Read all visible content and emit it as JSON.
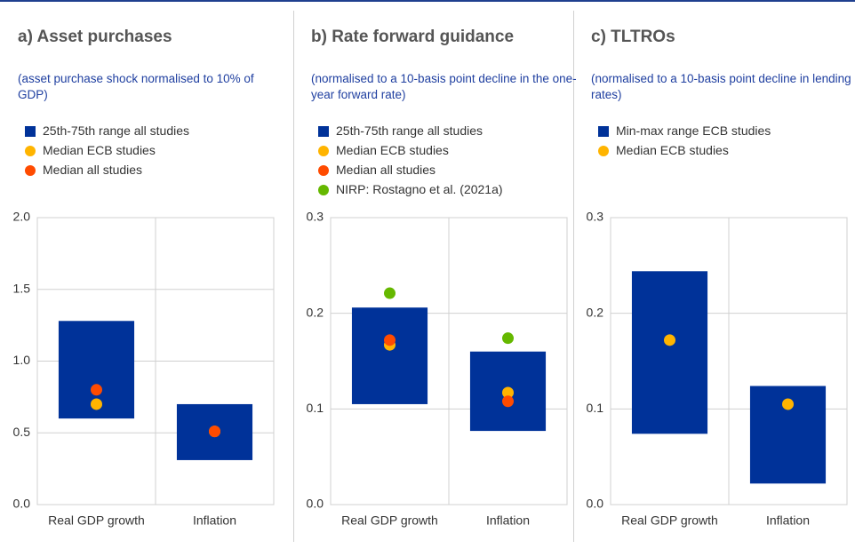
{
  "chart_data": [
    {
      "type": "range",
      "title": "a) Asset purchases",
      "subtitle": "(asset purchase shock normalised to 10% of GDP)",
      "categories": [
        "Real GDP growth",
        "Inflation"
      ],
      "series": [
        {
          "name": "25th-75th range all studies",
          "color": "#003299",
          "values": [
            [
              0.6,
              1.28
            ],
            [
              0.31,
              0.7
            ]
          ]
        },
        {
          "name": "Median ECB studies",
          "color": "#ffb400",
          "values": [
            0.7,
            0.51
          ]
        },
        {
          "name": "Median all studies",
          "color": "#ff4b00",
          "values": [
            0.8,
            0.51
          ]
        }
      ],
      "ylim": [
        0,
        2
      ],
      "yticks": [
        {
          "value": 0,
          "label": "0.0"
        },
        0.5,
        {
          "value": 1,
          "label": "1.0"
        },
        1.5,
        {
          "value": 2,
          "label": "2.0"
        }
      ],
      "grid": true
    },
    {
      "type": "range",
      "title": "b) Rate forward guidance",
      "subtitle": "(normalised to a 10-basis point decline in the one-year forward rate)",
      "categories": [
        "Real GDP growth",
        "Inflation"
      ],
      "series": [
        {
          "name": "25th-75th range all studies",
          "color": "#003299",
          "values": [
            [
              0.105,
              0.206
            ],
            [
              0.077,
              0.16
            ]
          ]
        },
        {
          "name": "Median ECB studies",
          "color": "#ffb400",
          "values": [
            0.167,
            0.117
          ]
        },
        {
          "name": "Median all studies",
          "color": "#ff4b00",
          "values": [
            0.172,
            0.108
          ]
        },
        {
          "name": "NIRP: Rostagno et al. (2021a)",
          "color": "#65b800",
          "values": [
            0.221,
            0.174
          ]
        }
      ],
      "ylim": [
        0,
        0.3
      ],
      "yticks": [
        {
          "value": 0,
          "label": "0.0"
        },
        0.1,
        0.2,
        0.3
      ],
      "grid": true
    },
    {
      "type": "range",
      "title": "c) TLTROs",
      "subtitle": "(normalised to a 10-basis point decline in lending rates)",
      "categories": [
        "Real GDP growth",
        "Inflation"
      ],
      "series": [
        {
          "name": "Min-max range ECB studies",
          "color": "#003299",
          "values": [
            [
              0.074,
              0.244
            ],
            [
              0.022,
              0.124
            ]
          ]
        },
        {
          "name": "Median ECB studies",
          "color": "#ffb400",
          "values": [
            0.172,
            0.105
          ]
        }
      ],
      "ylim": [
        0,
        0.3
      ],
      "yticks": [
        {
          "value": 0,
          "label": "0.0"
        },
        0.1,
        0.2,
        0.3
      ],
      "grid": true
    }
  ]
}
